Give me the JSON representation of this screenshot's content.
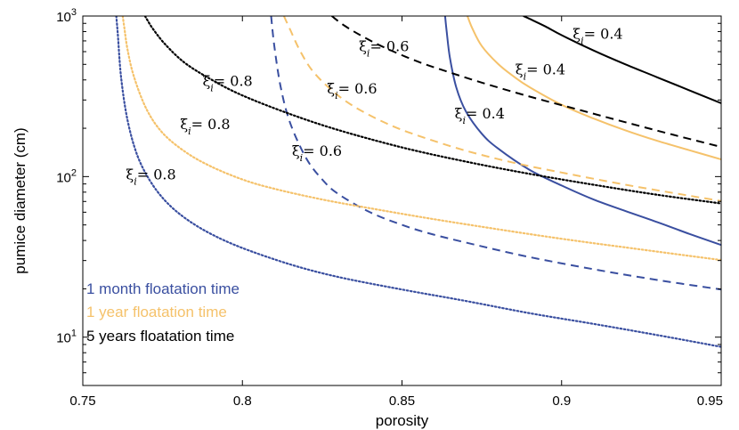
{
  "chart_data": {
    "type": "line",
    "xlabel": "porosity",
    "ylabel": "pumice diameter (cm)",
    "xlim": [
      0.75,
      0.95
    ],
    "ylim": [
      5,
      1000
    ],
    "yscale": "log",
    "x_ticks": [
      0.75,
      0.8,
      0.85,
      0.9,
      0.95
    ],
    "x_tick_labels": [
      "0.75",
      "0.8",
      "0.85",
      "0.9",
      "0.95"
    ],
    "y_ticks": [
      10,
      100,
      1000
    ],
    "y_tick_labels": [
      {
        "base": "10",
        "exp": "1"
      },
      {
        "base": "10",
        "exp": "2"
      },
      {
        "base": "10",
        "exp": "3"
      }
    ],
    "grid": false,
    "colors": {
      "month": "#3a4fa0",
      "year": "#f5c26b",
      "years5": "#000000"
    },
    "legend": {
      "placement": "bottom-left",
      "entries": [
        {
          "label": "1 month floatation time",
          "color": "#3a4fa0"
        },
        {
          "label": "1 year floatation time",
          "color": "#f5c26b"
        },
        {
          "label": "5 years floatation time",
          "color": "#000000"
        }
      ]
    },
    "series": [
      {
        "group": "month",
        "xi": 0.8,
        "linestyle": "dotted",
        "color": "#3a4fa0",
        "x": [
          0.7605,
          0.761,
          0.762,
          0.764,
          0.767,
          0.771,
          0.776,
          0.782,
          0.79,
          0.8,
          0.815,
          0.83,
          0.85,
          0.87,
          0.89,
          0.91,
          0.93,
          0.95
        ],
        "y": [
          1000,
          760,
          415,
          225,
          137,
          94.5,
          70.1,
          55.2,
          44.1,
          35.9,
          28.4,
          23.7,
          19.8,
          16.8,
          14.1,
          12.1,
          10.3,
          8.7
        ]
      },
      {
        "group": "month",
        "xi": 0.6,
        "linestyle": "dashed",
        "color": "#3a4fa0",
        "x": [
          0.809,
          0.81,
          0.812,
          0.815,
          0.82,
          0.825,
          0.83,
          0.84,
          0.85,
          0.86,
          0.875,
          0.89,
          0.91,
          0.93,
          0.95
        ],
        "y": [
          1000,
          650,
          360,
          215,
          130,
          96,
          78,
          60,
          50,
          43.5,
          36.8,
          31.5,
          26.5,
          22.7,
          19.8
        ]
      },
      {
        "group": "month",
        "xi": 0.4,
        "linestyle": "solid",
        "color": "#3a4fa0",
        "x": [
          0.8635,
          0.864,
          0.865,
          0.867,
          0.87,
          0.875,
          0.88,
          0.89,
          0.9,
          0.91,
          0.92,
          0.93,
          0.94,
          0.95
        ],
        "y": [
          1000,
          800,
          550,
          360,
          255,
          185,
          150,
          110,
          88,
          72,
          61,
          52,
          44,
          37.5
        ]
      },
      {
        "group": "year",
        "xi": 0.8,
        "linestyle": "dotted",
        "color": "#f5c26b",
        "x": [
          0.7625,
          0.763,
          0.764,
          0.766,
          0.77,
          0.775,
          0.782,
          0.79,
          0.8,
          0.81,
          0.825,
          0.84,
          0.86,
          0.88,
          0.9,
          0.92,
          0.95
        ],
        "y": [
          1000,
          850,
          620,
          420,
          262,
          187,
          143,
          116,
          96,
          84,
          72,
          63.5,
          54.3,
          47,
          41,
          36.2,
          30.2
        ]
      },
      {
        "group": "year",
        "xi": 0.6,
        "linestyle": "dashed",
        "color": "#f5c26b",
        "x": [
          0.813,
          0.815,
          0.818,
          0.822,
          0.828,
          0.835,
          0.845,
          0.855,
          0.87,
          0.885,
          0.9,
          0.92,
          0.94,
          0.95
        ],
        "y": [
          1000,
          820,
          610,
          455,
          345,
          273,
          215,
          180,
          145,
          122,
          106,
          89,
          76,
          70.5
        ]
      },
      {
        "group": "year",
        "xi": 0.4,
        "linestyle": "solid",
        "color": "#f5c26b",
        "x": [
          0.8705,
          0.872,
          0.875,
          0.88,
          0.885,
          0.89,
          0.9,
          0.91,
          0.92,
          0.93,
          0.94,
          0.95
        ],
        "y": [
          1000,
          840,
          650,
          505,
          420,
          360,
          280,
          230,
          194,
          167,
          146,
          128
        ]
      },
      {
        "group": "years5",
        "xi": 0.8,
        "linestyle": "dotted",
        "color": "#000000",
        "x": [
          0.7695,
          0.77,
          0.772,
          0.776,
          0.782,
          0.79,
          0.8,
          0.815,
          0.83,
          0.85,
          0.87,
          0.89,
          0.91,
          0.93,
          0.95
        ],
        "y": [
          1000,
          960,
          830,
          660,
          510,
          405,
          320,
          245,
          195,
          152,
          124,
          104,
          89,
          77,
          68
        ]
      },
      {
        "group": "years5",
        "xi": 0.6,
        "linestyle": "dashed",
        "color": "#000000",
        "x": [
          0.828,
          0.832,
          0.838,
          0.845,
          0.855,
          0.865,
          0.875,
          0.89,
          0.905,
          0.92,
          0.935,
          0.95
        ],
        "y": [
          1000,
          870,
          740,
          630,
          520,
          445,
          385,
          315,
          262,
          218,
          182,
          153
        ]
      },
      {
        "group": "years5",
        "xi": 0.4,
        "linestyle": "solid",
        "color": "#000000",
        "x": [
          0.888,
          0.89,
          0.895,
          0.9,
          0.91,
          0.92,
          0.93,
          0.94,
          0.95
        ],
        "y": [
          1000,
          960,
          860,
          760,
          610,
          500,
          415,
          345,
          286
        ]
      }
    ],
    "annotations": [
      {
        "symbol": "ξ",
        "sub": "i",
        "text": "= 0.8",
        "x": 0.7635,
        "y": 96
      },
      {
        "symbol": "ξ",
        "sub": "i",
        "text": "= 0.8",
        "x": 0.7805,
        "y": 197
      },
      {
        "symbol": "ξ",
        "sub": "i",
        "text": "= 0.8",
        "x": 0.7875,
        "y": 368
      },
      {
        "symbol": "ξ",
        "sub": "i",
        "text": "= 0.6",
        "x": 0.8155,
        "y": 135
      },
      {
        "symbol": "ξ",
        "sub": "i",
        "text": "= 0.6",
        "x": 0.8265,
        "y": 330
      },
      {
        "symbol": "ξ",
        "sub": "i",
        "text": "= 0.6",
        "x": 0.8365,
        "y": 603
      },
      {
        "symbol": "ξ",
        "sub": "i",
        "text": "= 0.4",
        "x": 0.8665,
        "y": 230
      },
      {
        "symbol": "ξ",
        "sub": "i",
        "text": "= 0.4",
        "x": 0.8855,
        "y": 432
      },
      {
        "symbol": "ξ",
        "sub": "i",
        "text": "= 0.4",
        "x": 0.9035,
        "y": 720
      }
    ]
  }
}
